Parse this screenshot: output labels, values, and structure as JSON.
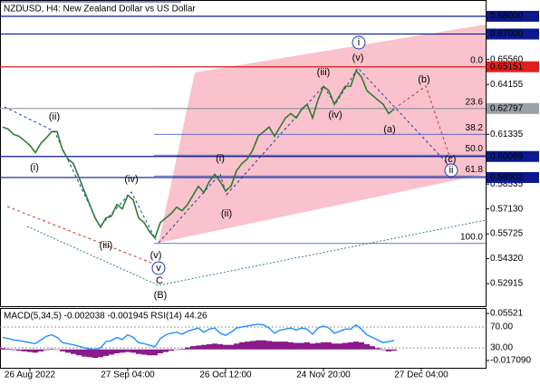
{
  "chart_data": [
    {
      "type": "line",
      "title": "NZDUSD, H4:  New Zealand Dollar vs US Dollar",
      "categories": [
        null,
        null,
        null,
        null,
        null,
        "26 Aug 2022",
        null,
        null,
        null,
        null,
        null,
        null,
        null,
        null,
        null,
        null,
        null,
        null,
        null,
        null,
        null,
        null,
        null,
        "27 Sep 04:00",
        null,
        null,
        null,
        null,
        null,
        null,
        null,
        null,
        null,
        null,
        null,
        null,
        null,
        null,
        null,
        null,
        null,
        "26 Oct 12:00",
        null,
        null,
        null,
        null,
        null,
        null,
        null,
        null,
        null,
        null,
        null,
        null,
        null,
        null,
        null,
        null,
        null,
        "24 Nov 20:00",
        null,
        null,
        null,
        null,
        null,
        null,
        null,
        null,
        null,
        null,
        null,
        null,
        null,
        null,
        null,
        null,
        null,
        "27 Dec 04:00"
      ],
      "values": [
        0.6175,
        0.6164,
        0.6134,
        0.6123,
        0.6098,
        0.6072,
        0.6031,
        0.6082,
        0.6113,
        0.6149,
        0.6149,
        0.6046,
        0.5995,
        0.5969,
        0.5892,
        0.5815,
        0.5738,
        0.5662,
        0.561,
        0.5662,
        0.5672,
        0.5738,
        0.5713,
        0.579,
        0.5764,
        0.5662,
        0.5636,
        0.5585,
        0.5549,
        0.5636,
        0.5662,
        0.5687,
        0.5723,
        0.5703,
        0.5738,
        0.579,
        0.5841,
        0.5805,
        0.5867,
        0.5908,
        0.5867,
        0.5815,
        0.5841,
        0.5928,
        0.5969,
        0.5995,
        0.6046,
        0.6123,
        0.6149,
        0.6175,
        0.6123,
        0.6175,
        0.6226,
        0.6251,
        0.6226,
        0.6277,
        0.6303,
        0.6226,
        0.6328,
        0.6405,
        0.638,
        0.6303,
        0.6354,
        0.6405,
        0.6405,
        0.6493,
        0.6457,
        0.638,
        0.6354,
        0.6328,
        0.6303,
        0.6251,
        0.6277,
        null,
        null,
        null,
        null,
        null
      ],
      "color": "#2e7d32",
      "ylim": [
        0.5164,
        0.6892
      ],
      "yticks": [
        {
          "value": 0.6556,
          "label": "0.65560"
        },
        0.64155,
        0.61335,
        0.58535,
        {
          "value": 0.5713,
          "label": "0.57130"
        },
        0.55725,
        {
          "value": 0.5432,
          "label": "0.54320"
        },
        0.52915
      ],
      "levels": [
        {
          "value": 0.68,
          "label": "0.68000",
          "color": "#0a1a8c"
        },
        {
          "value": 0.67,
          "label": "0.67000",
          "color": "#0a1a8c"
        },
        {
          "value": 0.65151,
          "label": "0.65151",
          "color": "#e0201b"
        },
        {
          "value": 0.62797,
          "label": "0.62797",
          "color": "#9aa0a6"
        },
        {
          "value": 0.60089,
          "label": "0.60089",
          "color": "#0a1a8c"
        },
        {
          "value": 0.58902,
          "label": "0.58902",
          "color": "#0a1a8c"
        }
      ],
      "fibonacci": {
        "range": [
          0.65151,
          0.5518
        ],
        "color": "#2f49c8",
        "levels": [
          {
            "value": 0,
            "label": "0.0"
          },
          23.6,
          38.2,
          {
            "value": 50,
            "label": "50.0"
          },
          61.8,
          {
            "value": 100,
            "label": "100.0"
          }
        ]
      },
      "annotations": [
        {
          "text": "(i)",
          "color": "#c0392b"
        },
        {
          "text": "(ii)",
          "color": "#c0392b"
        },
        {
          "text": "(iii)",
          "color": "#c0392b"
        },
        {
          "text": "(iv)",
          "color": "#c0392b"
        },
        {
          "text": "(v)",
          "color": "#c0392b"
        },
        {
          "text": "v",
          "color": "#1a3ea8"
        },
        {
          "text": "C",
          "color": "#c0392b"
        },
        {
          "text": "(B)",
          "color": "#2e8b57"
        },
        {
          "text": "(i)",
          "color": "#c0392b"
        },
        {
          "text": "(ii)",
          "color": "#c0392b"
        },
        {
          "text": "(iii)",
          "color": "#c0392b"
        },
        {
          "text": "(iv)",
          "color": "#c0392b"
        },
        {
          "text": "(v)",
          "color": "#c0392b"
        },
        {
          "text": "i",
          "color": "#1a3ea8"
        },
        {
          "text": "(a)",
          "color": "#c0392b"
        },
        {
          "text": "(b)",
          "color": "#c0392b"
        },
        {
          "text": "(c)",
          "color": "#c0392b"
        },
        {
          "text": "ii",
          "color": "#1a3ea8"
        }
      ]
    },
    {
      "type": "macd",
      "title": "MACD(5,34,5) -0.002038 -0.001945 RSI(14) 44.26",
      "ylim": [
        -0.0282,
        0.0636
      ],
      "yticks": [
        0.05521,
        {
          "value": -0.01709,
          "label": "-0.017090"
        }
      ],
      "y2lim": [
        -8.3,
        106.5
      ],
      "y2ticks": [
        {
          "value": 70,
          "label": "70.00"
        },
        {
          "value": 30,
          "label": "30.00"
        }
      ],
      "series": [
        {
          "type": "bar",
          "color": "#8b1a8b",
          "values": [
            0.002,
            0.001,
            -0.001,
            -0.002,
            -0.003,
            -0.004,
            -0.005,
            -0.003,
            -0.001,
            0.001,
            0.0,
            -0.003,
            -0.005,
            -0.007,
            -0.009,
            -0.011,
            -0.012,
            -0.013,
            -0.012,
            -0.01,
            -0.008,
            -0.006,
            -0.005,
            -0.004,
            -0.005,
            -0.007,
            -0.008,
            -0.009,
            -0.009,
            -0.006,
            -0.004,
            -0.002,
            0.0,
            0.001,
            0.003,
            0.005,
            0.006,
            0.007,
            0.008,
            0.009,
            0.008,
            0.007,
            0.007,
            0.009,
            0.011,
            0.012,
            0.013,
            0.014,
            0.014,
            0.013,
            0.012,
            0.012,
            0.012,
            0.011,
            0.01,
            0.01,
            0.011,
            0.009,
            0.01,
            0.011,
            0.011,
            0.009,
            0.009,
            0.01,
            0.011,
            0.012,
            0.011,
            0.008,
            0.005,
            0.002,
            -0.001,
            -0.003,
            -0.002
          ]
        },
        {
          "type": "line",
          "axis": "y2",
          "color": "#1e90ff",
          "values": [
            50,
            48,
            45,
            44,
            42,
            40,
            38,
            45,
            52,
            55,
            50,
            40,
            38,
            36,
            33,
            30,
            28,
            27,
            30,
            42,
            44,
            50,
            46,
            55,
            50,
            40,
            38,
            35,
            32,
            48,
            55,
            58,
            60,
            56,
            62,
            65,
            68,
            60,
            66,
            68,
            58,
            54,
            60,
            68,
            70,
            72,
            74,
            75,
            74,
            68,
            58,
            64,
            66,
            68,
            64,
            68,
            66,
            56,
            68,
            72,
            68,
            58,
            62,
            66,
            66,
            74,
            66,
            55,
            50,
            45,
            40,
            42,
            44
          ]
        }
      ]
    }
  ]
}
